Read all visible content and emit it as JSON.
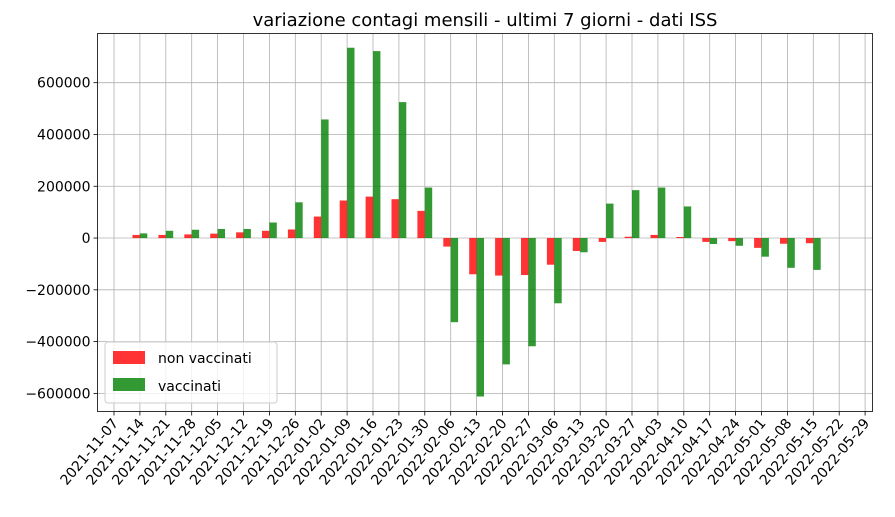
{
  "chart_data": {
    "type": "bar",
    "title": "variazione contagi mensili - ultimi 7 giorni - dati ISS",
    "xlabel": "",
    "ylabel": "",
    "x_tick_labels": [
      "2021-11-07",
      "2021-11-14",
      "2021-11-21",
      "2021-11-28",
      "2021-12-05",
      "2021-12-12",
      "2021-12-19",
      "2021-12-26",
      "2022-01-02",
      "2022-01-09",
      "2022-01-16",
      "2022-01-23",
      "2022-01-30",
      "2022-02-06",
      "2022-02-13",
      "2022-02-20",
      "2022-02-27",
      "2022-03-06",
      "2022-03-13",
      "2022-03-20",
      "2022-03-27",
      "2022-04-03",
      "2022-04-10",
      "2022-04-17",
      "2022-04-24",
      "2022-05-01",
      "2022-05-08",
      "2022-05-15",
      "2022-05-22",
      "2022-05-29"
    ],
    "y_ticks": [
      -600000,
      -400000,
      -200000,
      0,
      200000,
      400000,
      600000
    ],
    "y_tick_labels": [
      "−600000",
      "−400000",
      "−200000",
      "0",
      "200000",
      "400000",
      "600000"
    ],
    "ylim": [
      -670000,
      790000
    ],
    "grid": true,
    "legend_position": "lower-left",
    "categories": [
      "2021-11-14",
      "2021-11-21",
      "2021-11-28",
      "2021-12-05",
      "2021-12-12",
      "2021-12-19",
      "2021-12-26",
      "2022-01-02",
      "2022-01-09",
      "2022-01-16",
      "2022-01-23",
      "2022-01-30",
      "2022-02-06",
      "2022-02-13",
      "2022-02-20",
      "2022-02-27",
      "2022-03-06",
      "2022-03-13",
      "2022-03-20",
      "2022-03-27",
      "2022-04-03",
      "2022-04-10",
      "2022-04-17",
      "2022-04-24",
      "2022-05-01",
      "2022-05-08",
      "2022-05-15"
    ],
    "series": [
      {
        "name": "non vaccinati",
        "color": "#ff0000",
        "values": [
          12000,
          12000,
          14000,
          17000,
          22000,
          28000,
          33000,
          83000,
          145000,
          160000,
          150000,
          105000,
          -33000,
          -140000,
          -145000,
          -143000,
          -103000,
          -50000,
          -15000,
          5000,
          12000,
          4000,
          -15000,
          -12000,
          -38000,
          -22000,
          -20000
        ]
      },
      {
        "name": "vaccinati",
        "color": "#008000",
        "values": [
          18000,
          28000,
          32000,
          35000,
          35000,
          60000,
          138000,
          458000,
          735000,
          722000,
          525000,
          195000,
          -325000,
          -612000,
          -488000,
          -418000,
          -252000,
          -55000,
          133000,
          185000,
          195000,
          122000,
          -23000,
          -30000,
          -72000,
          -115000,
          -123000
        ]
      }
    ]
  }
}
